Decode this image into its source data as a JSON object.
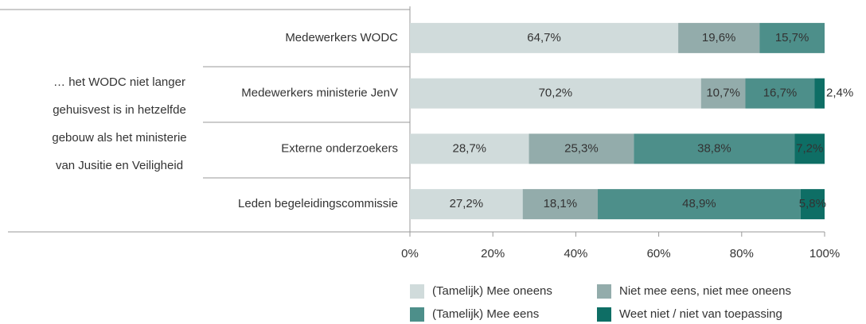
{
  "chart_data": {
    "type": "stacked_barh",
    "group_label": [
      "… het WODC niet langer",
      "gehuisvest is in hetzelfde",
      "gebouw als het ministerie",
      "van Jusitie en Veiligheid"
    ],
    "categories": [
      "Medewerkers WODC",
      "Medewerkers ministerie JenV",
      "Externe onderzoekers",
      "Leden begeleidingscommissie"
    ],
    "series": [
      {
        "name": "(Tamelijk) Mee oneens",
        "color": "#d0dbdb",
        "values": [
          64.7,
          70.2,
          28.7,
          27.2
        ],
        "value_labels": [
          "64,7%",
          "70,2%",
          "28,7%",
          "27,2%"
        ]
      },
      {
        "name": "Niet mee eens, niet mee oneens",
        "color": "#93acab",
        "values": [
          19.6,
          10.7,
          25.3,
          18.1
        ],
        "value_labels": [
          "19,6%",
          "10,7%",
          "25,3%",
          "18,1%"
        ]
      },
      {
        "name": "(Tamelijk) Mee eens",
        "color": "#4d8f8a",
        "values": [
          15.7,
          16.7,
          38.8,
          48.9
        ],
        "value_labels": [
          "15,7%",
          "16,7%",
          "38,8%",
          "48,9%"
        ]
      },
      {
        "name": "Weet niet / niet van toepassing",
        "color": "#0e6e65",
        "values": [
          0,
          2.4,
          7.2,
          5.8
        ],
        "value_labels": [
          null,
          "2,4%",
          "7,2%",
          "5,8%"
        ]
      }
    ],
    "xlim": [
      0,
      100
    ],
    "xticks": [
      {
        "value": 0,
        "label": "0%"
      },
      {
        "value": 20,
        "label": "20%"
      },
      {
        "value": 40,
        "label": "40%"
      },
      {
        "value": 60,
        "label": "60%"
      },
      {
        "value": 80,
        "label": "80%"
      },
      {
        "value": 100,
        "label": "100%"
      }
    ]
  }
}
